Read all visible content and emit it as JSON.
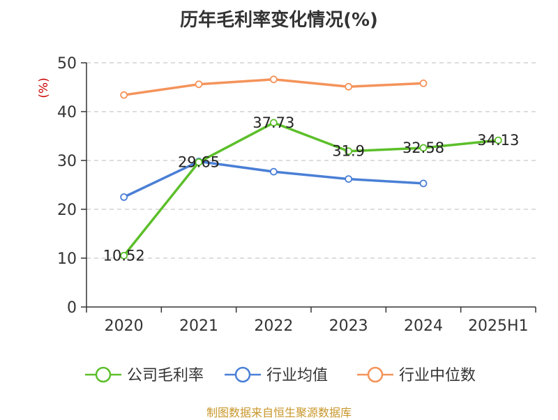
{
  "chart_data": {
    "type": "line",
    "title": "历年毛利率变化情况(%)",
    "ylabel": "(%)",
    "categories": [
      "2020",
      "2021",
      "2022",
      "2023",
      "2024",
      "2025H1"
    ],
    "ylim": [
      0,
      50
    ],
    "yticks": [
      0,
      10,
      20,
      30,
      40,
      50
    ],
    "grid": true,
    "legend_position": "bottom",
    "series": [
      {
        "name": "公司毛利率",
        "color": "#5cbf2a",
        "values": [
          10.52,
          29.65,
          37.73,
          31.9,
          32.58,
          34.13
        ],
        "labels": [
          "10.52",
          "29.65",
          "37.73",
          "31.9",
          "32.58",
          "34.13"
        ]
      },
      {
        "name": "行业均值",
        "color": "#4a7fd6",
        "values": [
          22.5,
          29.8,
          27.7,
          26.2,
          25.3,
          null
        ]
      },
      {
        "name": "行业中位数",
        "color": "#f4935a",
        "values": [
          43.4,
          45.6,
          46.6,
          45.1,
          45.8,
          null
        ]
      }
    ]
  },
  "footer": "制图数据来自恒生聚源数据库"
}
